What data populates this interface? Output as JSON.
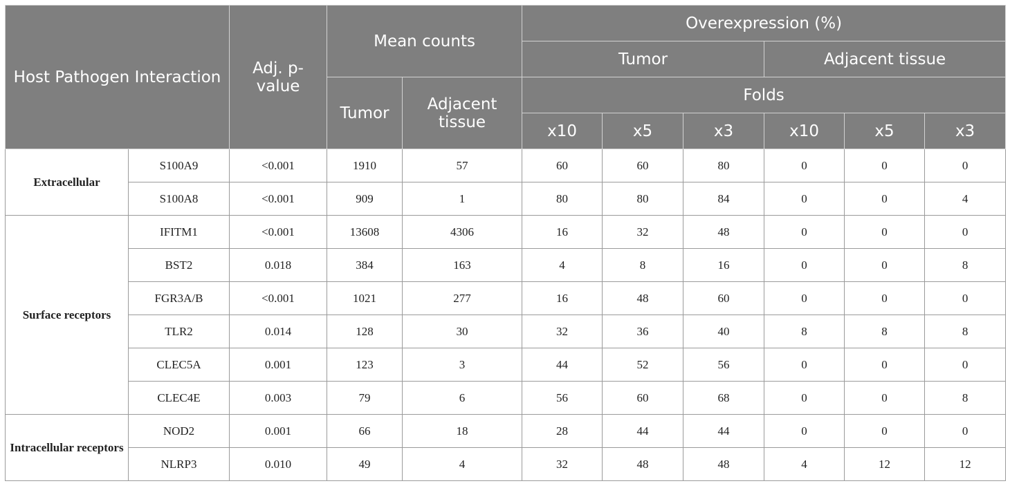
{
  "header": {
    "interaction": "Host Pathogen Interaction",
    "pvalue": "Adj. p-value",
    "mean_counts": "Mean counts",
    "overexpression": "Overexpression (%)",
    "tumor": "Tumor",
    "adjacent_tissue": "Adjacent tissue",
    "folds": "Folds",
    "mean_tumor": "Tumor",
    "mean_adjacent": "Adjacent tissue",
    "fold_labels": [
      "x10",
      "x5",
      "x3",
      "x10",
      "x5",
      "x3"
    ]
  },
  "groups": [
    {
      "name": "Extracellular",
      "rows": [
        {
          "gene": "S100A9",
          "pvalue": "<0.001",
          "tumor": "1910",
          "adjacent": "57",
          "folds": [
            "60",
            "60",
            "80",
            "0",
            "0",
            "0"
          ]
        },
        {
          "gene": "S100A8",
          "pvalue": "<0.001",
          "tumor": "909",
          "adjacent": "1",
          "folds": [
            "80",
            "80",
            "84",
            "0",
            "0",
            "4"
          ]
        }
      ]
    },
    {
      "name": "Surface receptors",
      "rows": [
        {
          "gene": "IFITM1",
          "pvalue": "<0.001",
          "tumor": "13608",
          "adjacent": "4306",
          "folds": [
            "16",
            "32",
            "48",
            "0",
            "0",
            "0"
          ]
        },
        {
          "gene": "BST2",
          "pvalue": "0.018",
          "tumor": "384",
          "adjacent": "163",
          "folds": [
            "4",
            "8",
            "16",
            "0",
            "0",
            "8"
          ]
        },
        {
          "gene": "FGR3A/B",
          "pvalue": "<0.001",
          "tumor": "1021",
          "adjacent": "277",
          "folds": [
            "16",
            "48",
            "60",
            "0",
            "0",
            "0"
          ]
        },
        {
          "gene": "TLR2",
          "pvalue": "0.014",
          "tumor": "128",
          "adjacent": "30",
          "folds": [
            "32",
            "36",
            "40",
            "8",
            "8",
            "8"
          ]
        },
        {
          "gene": "CLEC5A",
          "pvalue": "0.001",
          "tumor": "123",
          "adjacent": "3",
          "folds": [
            "44",
            "52",
            "56",
            "0",
            "0",
            "0"
          ]
        },
        {
          "gene": "CLEC4E",
          "pvalue": "0.003",
          "tumor": "79",
          "adjacent": "6",
          "folds": [
            "56",
            "60",
            "68",
            "0",
            "0",
            "8"
          ]
        }
      ]
    },
    {
      "name": "Intracellular receptors",
      "rows": [
        {
          "gene": "NOD2",
          "pvalue": "0.001",
          "tumor": "66",
          "adjacent": "18",
          "folds": [
            "28",
            "44",
            "44",
            "0",
            "0",
            "0"
          ]
        },
        {
          "gene": "NLRP3",
          "pvalue": "0.010",
          "tumor": "49",
          "adjacent": "4",
          "folds": [
            "32",
            "48",
            "48",
            "4",
            "12",
            "12"
          ]
        }
      ]
    }
  ]
}
